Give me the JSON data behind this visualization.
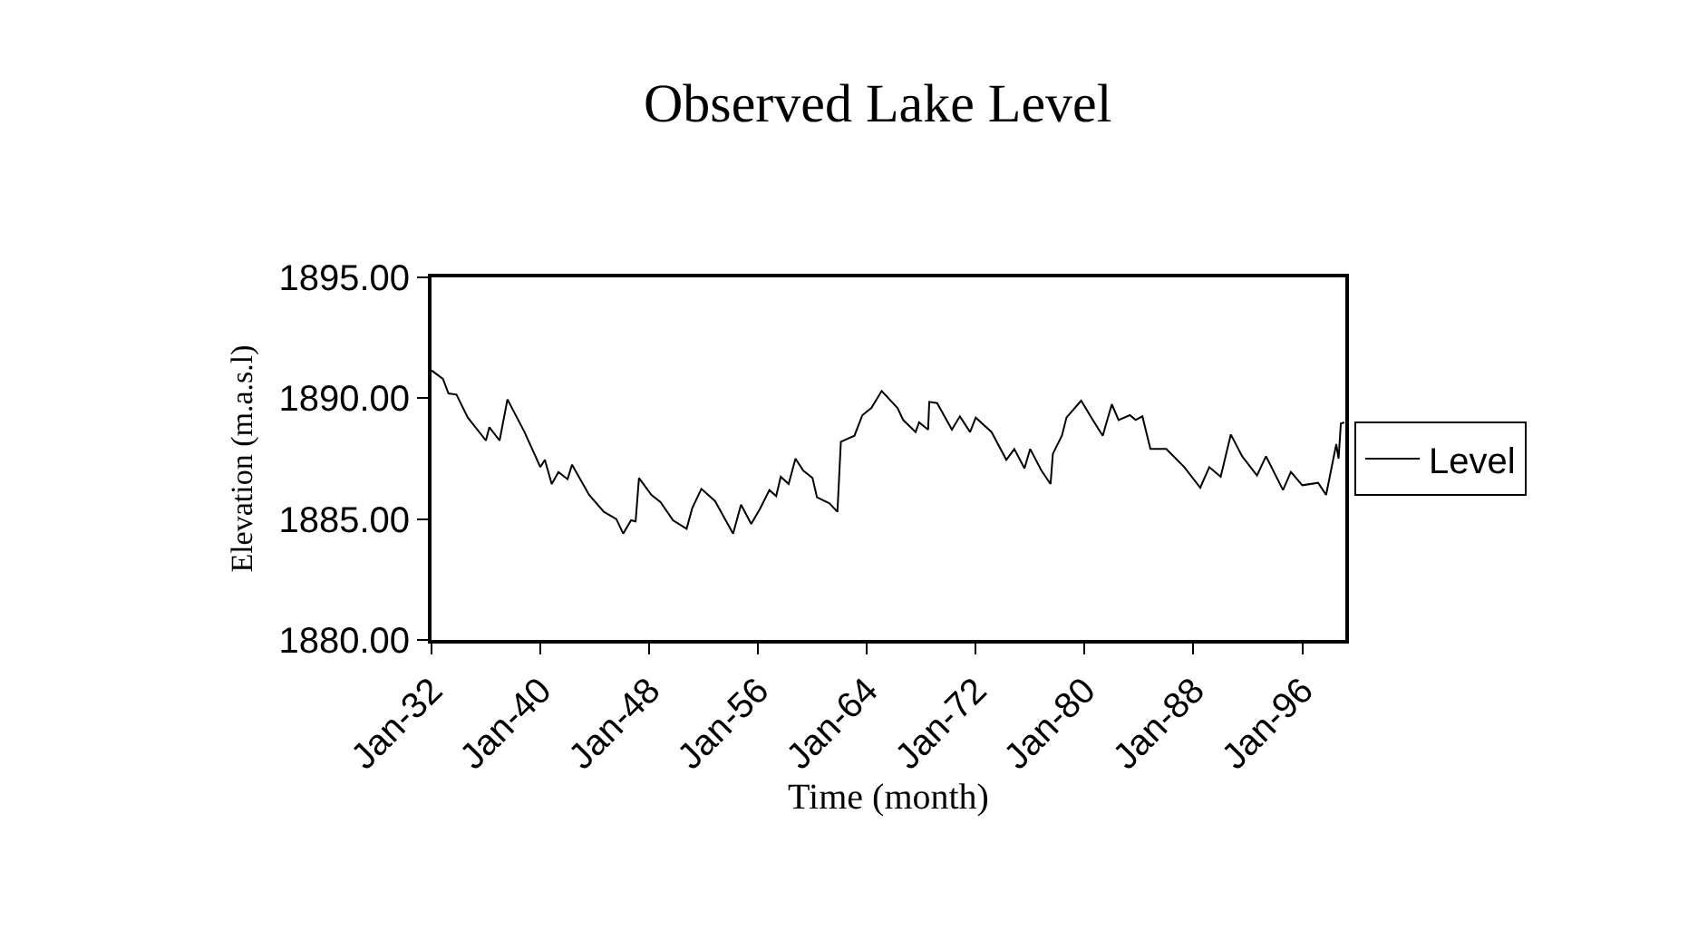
{
  "chart_data": {
    "type": "line",
    "title": "Observed Lake Level",
    "xlabel": "Time (month)",
    "ylabel": "Elevation (m.a.s.l)",
    "x": [
      "1932-01",
      "1932-11",
      "1933-04",
      "1933-11",
      "1934-09",
      "1936-01",
      "1936-04",
      "1937-01",
      "1937-08",
      "1938-11",
      "1940-01",
      "1940-05",
      "1940-11",
      "1941-05",
      "1942-01",
      "1942-05",
      "1943-08",
      "1944-09",
      "1945-08",
      "1946-02",
      "1946-09",
      "1947-01",
      "1947-04",
      "1948-03",
      "1948-11",
      "1949-10",
      "1950-10",
      "1951-03",
      "1951-11",
      "1952-11",
      "1954-03",
      "1954-10",
      "1955-07",
      "1956-03",
      "1956-11",
      "1957-05",
      "1957-09",
      "1958-04",
      "1958-10",
      "1959-05",
      "1960-01",
      "1960-05",
      "1961-04",
      "1961-11",
      "1962-02",
      "1963-02",
      "1963-09",
      "1964-05",
      "1965-02",
      "1966-04",
      "1966-09",
      "1967-08",
      "1967-11",
      "1968-07",
      "1968-08",
      "1969-03",
      "1970-04",
      "1970-11",
      "1971-08",
      "1972-01",
      "1973-03",
      "1974-04",
      "1974-11",
      "1975-08",
      "1976-01",
      "1976-11",
      "1977-07",
      "1977-09",
      "1978-05",
      "1978-09",
      "1979-10",
      "1980-07",
      "1981-05",
      "1982-01",
      "1982-07",
      "1983-05",
      "1983-10",
      "1984-04",
      "1984-11",
      "1986-01",
      "1987-05",
      "1988-07",
      "1989-03",
      "1990-01",
      "1990-10",
      "1991-08",
      "1992-09",
      "1993-05",
      "1994-08",
      "1995-03",
      "1996-01",
      "1997-03",
      "1997-10",
      "1998-07",
      "1998-09",
      "1998-11",
      "1999-02"
    ],
    "series": [
      {
        "name": "Level",
        "color": "#000000",
        "values": [
          1891.15,
          1890.8,
          1890.2,
          1890.15,
          1889.2,
          1888.25,
          1888.8,
          1888.25,
          1889.95,
          1888.6,
          1887.15,
          1887.45,
          1886.45,
          1886.95,
          1886.65,
          1887.25,
          1886.0,
          1885.3,
          1885.0,
          1884.4,
          1884.95,
          1884.9,
          1886.7,
          1886.0,
          1885.7,
          1884.95,
          1884.6,
          1885.45,
          1886.25,
          1885.75,
          1884.4,
          1885.6,
          1884.8,
          1885.45,
          1886.2,
          1885.95,
          1886.75,
          1886.45,
          1887.5,
          1887.0,
          1886.7,
          1885.9,
          1885.65,
          1885.3,
          1888.2,
          1888.45,
          1889.3,
          1889.6,
          1890.3,
          1889.6,
          1889.1,
          1888.6,
          1889.0,
          1888.7,
          1889.85,
          1889.8,
          1888.7,
          1889.25,
          1888.6,
          1889.2,
          1888.6,
          1887.45,
          1887.9,
          1887.1,
          1887.9,
          1887.0,
          1886.45,
          1887.7,
          1888.45,
          1889.2,
          1889.9,
          1889.2,
          1888.45,
          1889.75,
          1889.1,
          1889.3,
          1889.1,
          1889.25,
          1887.9,
          1887.9,
          1887.15,
          1886.3,
          1887.15,
          1886.75,
          1888.5,
          1887.6,
          1886.8,
          1887.6,
          1886.2,
          1886.95,
          1886.4,
          1886.5,
          1886.0,
          1888.1,
          1887.5,
          1888.95,
          1889.0
        ]
      }
    ],
    "xlim": [
      "1932-01",
      "1999-03"
    ],
    "xticks": [
      {
        "value": "1932-01",
        "label": "Jan-32"
      },
      {
        "value": "1940-01",
        "label": "Jan-40"
      },
      {
        "value": "1948-01",
        "label": "Jan-48"
      },
      {
        "value": "1956-01",
        "label": "Jan-56"
      },
      {
        "value": "1964-01",
        "label": "Jan-64"
      },
      {
        "value": "1972-01",
        "label": "Jan-72"
      },
      {
        "value": "1980-01",
        "label": "Jan-80"
      },
      {
        "value": "1988-01",
        "label": "Jan-88"
      },
      {
        "value": "1996-01",
        "label": "Jan-96"
      }
    ],
    "ylim": [
      1880,
      1895
    ],
    "yticks": [
      {
        "value": 1880,
        "label": "1880.00"
      },
      {
        "value": 1885,
        "label": "1885.00"
      },
      {
        "value": 1890,
        "label": "1890.00"
      },
      {
        "value": 1895,
        "label": "1895.00"
      }
    ],
    "legend": "right",
    "marker": "none",
    "line_style": "solid"
  }
}
